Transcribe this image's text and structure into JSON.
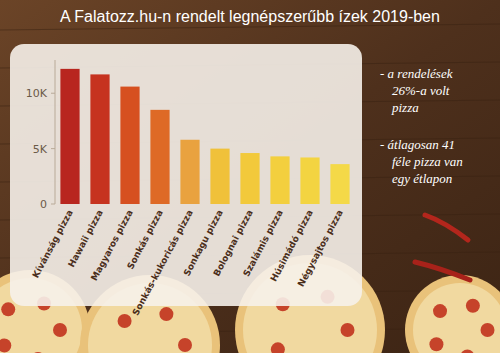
{
  "chart_data": {
    "type": "bar",
    "title": "A Falatozz.hu-n rendelt legnépszerűbb ízek 2019-ben",
    "categories": [
      "Kívánság pizza",
      "Hawaii pizza",
      "Magyaros pizza",
      "Sonkás pizza",
      "Sonkás-kukoricás pizza",
      "Sonkagu pizza",
      "Bolognai pizza",
      "Szalámis pizza",
      "Húsimádó pizza",
      "Négysajtos pizza"
    ],
    "values": [
      12200,
      11700,
      10600,
      8500,
      5800,
      5000,
      4600,
      4300,
      4200,
      3600
    ],
    "colors": [
      "#b8261f",
      "#c6331f",
      "#d65020",
      "#de6a26",
      "#e9a23f",
      "#f0c13a",
      "#f2c93b",
      "#f3cf3e",
      "#f3d441",
      "#f4d948"
    ],
    "ylim": [
      0,
      13000
    ],
    "yticks": [
      0,
      {
        "value": 5000,
        "label": "5K"
      },
      {
        "value": 10000,
        "label": "10K"
      }
    ],
    "grid": false,
    "annotations": [
      "- a rendelések 26%-a volt pizza",
      "- átlagosan 41 féle pizza van egy étlapon"
    ]
  }
}
